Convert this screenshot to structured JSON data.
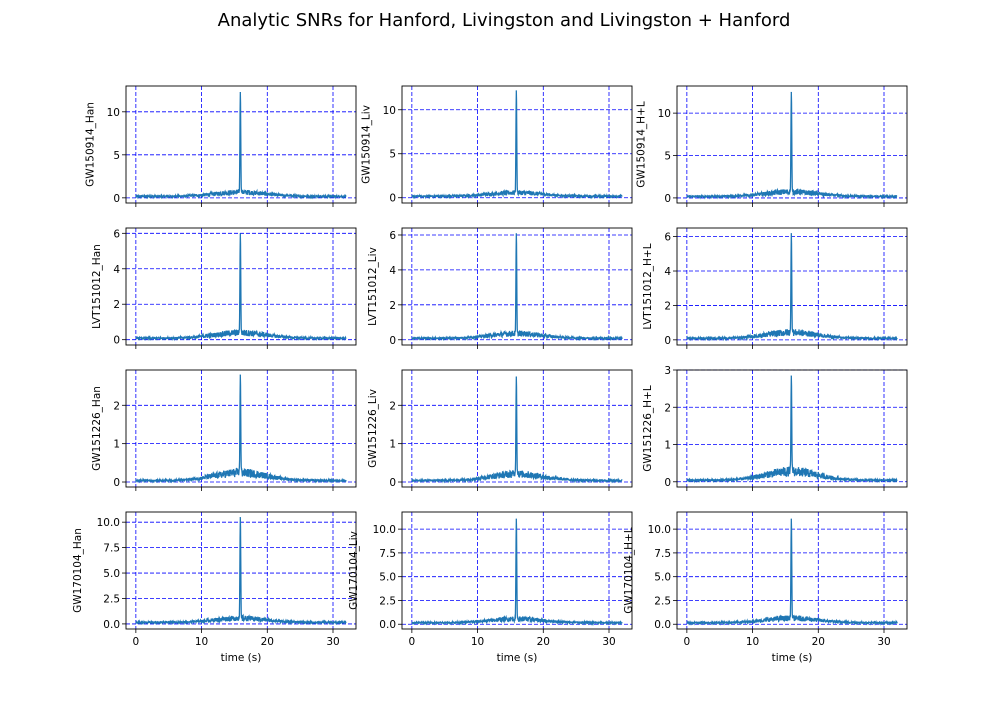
{
  "title": "Analytic SNRs for Hanford, Livingston and Livingston + Hanford",
  "chart_data": {
    "type": "line",
    "layout": "4x3 grid",
    "grid": true,
    "grid_style": "dashed",
    "grid_color": "#0000ff",
    "line_color": "#1f77b4",
    "xlabel": "time (s)",
    "xlim": [
      -1.5,
      33.5
    ],
    "xticks": [
      0,
      10,
      20,
      30
    ],
    "peak_time": 15.9,
    "duration": 32,
    "charts": [
      {
        "ylabel": "GW150914_Han",
        "ylim": [
          -0.6,
          13.0
        ],
        "yticks": [
          0,
          5,
          10
        ],
        "ytick_labels": [
          "0",
          "5",
          "10"
        ],
        "peak": 12.3,
        "envelope": 0.7
      },
      {
        "ylabel": "GW150914_Liv",
        "ylim": [
          -0.6,
          12.7
        ],
        "yticks": [
          0,
          5,
          10
        ],
        "ytick_labels": [
          "0",
          "5",
          "10"
        ],
        "peak": 12.2,
        "envelope": 0.6
      },
      {
        "ylabel": "GW150914_H+L",
        "ylim": [
          -0.6,
          13.2
        ],
        "yticks": [
          0,
          5,
          10
        ],
        "ytick_labels": [
          "0",
          "5",
          "10"
        ],
        "peak": 12.5,
        "envelope": 0.8
      },
      {
        "ylabel": "LVT151012_Han",
        "ylim": [
          -0.3,
          6.3
        ],
        "yticks": [
          0,
          2,
          4,
          6
        ],
        "ytick_labels": [
          "0",
          "2",
          "4",
          "6"
        ],
        "peak": 6.0,
        "envelope": 0.45
      },
      {
        "ylabel": "LVT151012_Liv",
        "ylim": [
          -0.3,
          6.4
        ],
        "yticks": [
          0,
          2,
          4,
          6
        ],
        "ytick_labels": [
          "0",
          "2",
          "4",
          "6"
        ],
        "peak": 6.1,
        "envelope": 0.4
      },
      {
        "ylabel": "LVT151012_H+L",
        "ylim": [
          -0.3,
          6.5
        ],
        "yticks": [
          0,
          2,
          4,
          6
        ],
        "ytick_labels": [
          "0",
          "2",
          "4",
          "6"
        ],
        "peak": 6.2,
        "envelope": 0.5
      },
      {
        "ylabel": "GW151226_Han",
        "ylim": [
          -0.13,
          2.92
        ],
        "yticks": [
          0,
          1,
          2
        ],
        "ytick_labels": [
          "0",
          "1",
          "2"
        ],
        "peak": 2.8,
        "envelope": 0.3
      },
      {
        "ylabel": "GW151226_Liv",
        "ylim": [
          -0.13,
          2.92
        ],
        "yticks": [
          0,
          1,
          2
        ],
        "ytick_labels": [
          "0",
          "1",
          "2"
        ],
        "peak": 2.75,
        "envelope": 0.25
      },
      {
        "ylabel": "GW151226_H+L",
        "ylim": [
          -0.14,
          3.0
        ],
        "yticks": [
          0,
          1,
          2,
          3
        ],
        "ytick_labels": [
          "0",
          "1",
          "2",
          "3"
        ],
        "peak": 2.85,
        "envelope": 0.35
      },
      {
        "ylabel": "GW170104_Han",
        "ylim": [
          -0.5,
          11.0
        ],
        "yticks": [
          0,
          2.5,
          5,
          7.5,
          10
        ],
        "ytick_labels": [
          "0.0",
          "2.5",
          "5.0",
          "7.5",
          "10.0"
        ],
        "peak": 10.5,
        "envelope": 0.6
      },
      {
        "ylabel": "GW170104_Liv",
        "ylim": [
          -0.5,
          11.8
        ],
        "yticks": [
          0,
          2.5,
          5,
          7.5,
          10
        ],
        "ytick_labels": [
          "0.0",
          "2.5",
          "5.0",
          "7.5",
          "10.0"
        ],
        "peak": 11.1,
        "envelope": 0.6
      },
      {
        "ylabel": "GW170104_H+L",
        "ylim": [
          -0.5,
          11.8
        ],
        "yticks": [
          0,
          2.5,
          5,
          7.5,
          10
        ],
        "ytick_labels": [
          "0.0",
          "2.5",
          "5.0",
          "7.5",
          "10.0"
        ],
        "peak": 11.1,
        "envelope": 0.7
      }
    ]
  }
}
